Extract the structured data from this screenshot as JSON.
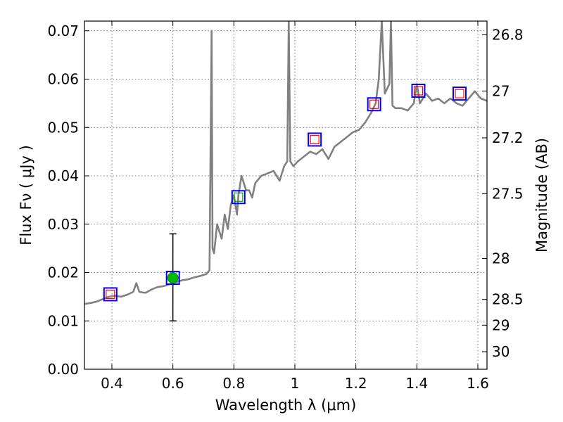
{
  "chart_data": {
    "type": "scatter",
    "xlabel": "Wavelength  λ (μm)",
    "ylabel": "Flux  Fν  ( μJy )",
    "ylabel_right": "Magnitude (AB)",
    "xlim": [
      0.31,
      1.63
    ],
    "ylim": [
      0.0,
      0.072
    ],
    "x_ticks": [
      "0.4",
      "0.6",
      "0.8",
      "1",
      "1.2",
      "1.4",
      "1.6"
    ],
    "x_tick_values": [
      0.4,
      0.6,
      0.8,
      1.0,
      1.2,
      1.4,
      1.6
    ],
    "y_ticks": [
      "0.00",
      "0.01",
      "0.02",
      "0.03",
      "0.04",
      "0.05",
      "0.06",
      "0.07"
    ],
    "y_tick_values": [
      0.0,
      0.01,
      0.02,
      0.03,
      0.04,
      0.05,
      0.06,
      0.07
    ],
    "mag_ticks": [
      "26.8",
      "27",
      "27.2",
      "27.5",
      "28",
      "28.5",
      "29",
      "30"
    ],
    "mag_tick_values": [
      26.8,
      27.0,
      27.2,
      27.5,
      28.0,
      28.5,
      29.0,
      30.0
    ],
    "grid": true,
    "colors": {
      "spectrum": "#808080",
      "square_outer": "#0000ff",
      "square_inner_red": "#ff0000",
      "square_inner_green": "#00aa00",
      "filled_point": "#00bb00",
      "errorbar": "#000000"
    },
    "spectrum": [
      [
        0.31,
        0.0135
      ],
      [
        0.33,
        0.0137
      ],
      [
        0.35,
        0.014
      ],
      [
        0.37,
        0.0145
      ],
      [
        0.39,
        0.015
      ],
      [
        0.41,
        0.0152
      ],
      [
        0.43,
        0.015
      ],
      [
        0.45,
        0.0154
      ],
      [
        0.47,
        0.016
      ],
      [
        0.48,
        0.0178
      ],
      [
        0.49,
        0.016
      ],
      [
        0.51,
        0.0158
      ],
      [
        0.53,
        0.0165
      ],
      [
        0.55,
        0.017
      ],
      [
        0.57,
        0.0172
      ],
      [
        0.59,
        0.0176
      ],
      [
        0.61,
        0.018
      ],
      [
        0.63,
        0.0184
      ],
      [
        0.65,
        0.0186
      ],
      [
        0.67,
        0.019
      ],
      [
        0.69,
        0.0193
      ],
      [
        0.71,
        0.0197
      ],
      [
        0.72,
        0.0205
      ],
      [
        0.727,
        0.07
      ],
      [
        0.73,
        0.025
      ],
      [
        0.735,
        0.024
      ],
      [
        0.745,
        0.03
      ],
      [
        0.76,
        0.027
      ],
      [
        0.77,
        0.032
      ],
      [
        0.78,
        0.029
      ],
      [
        0.79,
        0.034
      ],
      [
        0.8,
        0.036
      ],
      [
        0.81,
        0.032
      ],
      [
        0.815,
        0.036
      ],
      [
        0.825,
        0.04
      ],
      [
        0.84,
        0.037
      ],
      [
        0.85,
        0.037
      ],
      [
        0.86,
        0.0355
      ],
      [
        0.87,
        0.0385
      ],
      [
        0.89,
        0.04
      ],
      [
        0.91,
        0.0405
      ],
      [
        0.93,
        0.041
      ],
      [
        0.95,
        0.039
      ],
      [
        0.965,
        0.042
      ],
      [
        0.975,
        0.043
      ],
      [
        0.98,
        0.072
      ],
      [
        0.985,
        0.043
      ],
      [
        0.995,
        0.042
      ],
      [
        1.01,
        0.043
      ],
      [
        1.03,
        0.044
      ],
      [
        1.05,
        0.045
      ],
      [
        1.07,
        0.0445
      ],
      [
        1.09,
        0.0455
      ],
      [
        1.11,
        0.0435
      ],
      [
        1.13,
        0.046
      ],
      [
        1.15,
        0.047
      ],
      [
        1.17,
        0.048
      ],
      [
        1.19,
        0.049
      ],
      [
        1.21,
        0.0495
      ],
      [
        1.23,
        0.051
      ],
      [
        1.25,
        0.053
      ],
      [
        1.265,
        0.055
      ],
      [
        1.275,
        0.06
      ],
      [
        1.285,
        0.072
      ],
      [
        1.295,
        0.057
      ],
      [
        1.31,
        0.059
      ],
      [
        1.315,
        0.072
      ],
      [
        1.32,
        0.0545
      ],
      [
        1.33,
        0.054
      ],
      [
        1.35,
        0.054
      ],
      [
        1.37,
        0.0535
      ],
      [
        1.39,
        0.055
      ],
      [
        1.4,
        0.059
      ],
      [
        1.41,
        0.055
      ],
      [
        1.43,
        0.057
      ],
      [
        1.45,
        0.0555
      ],
      [
        1.47,
        0.056
      ],
      [
        1.49,
        0.055
      ],
      [
        1.51,
        0.056
      ],
      [
        1.53,
        0.055
      ],
      [
        1.55,
        0.0545
      ],
      [
        1.57,
        0.056
      ],
      [
        1.59,
        0.0575
      ],
      [
        1.61,
        0.056
      ],
      [
        1.63,
        0.0555
      ]
    ],
    "photometry_red": [
      {
        "x": 0.395,
        "y": 0.0155
      },
      {
        "x": 1.065,
        "y": 0.0475
      },
      {
        "x": 1.26,
        "y": 0.0548
      },
      {
        "x": 1.405,
        "y": 0.0576
      },
      {
        "x": 1.54,
        "y": 0.057
      }
    ],
    "photometry_green": [
      {
        "x": 0.815,
        "y": 0.0356
      }
    ],
    "measured": {
      "x": 0.6,
      "y": 0.0189,
      "err_low": 0.01,
      "err_high": 0.028
    }
  }
}
